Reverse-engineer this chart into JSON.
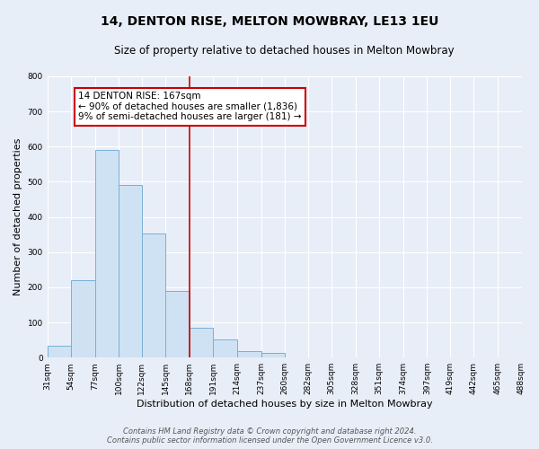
{
  "title": "14, DENTON RISE, MELTON MOWBRAY, LE13 1EU",
  "subtitle": "Size of property relative to detached houses in Melton Mowbray",
  "xlabel": "Distribution of detached houses by size in Melton Mowbray",
  "ylabel": "Number of detached properties",
  "bin_edges": [
    31,
    54,
    77,
    100,
    122,
    145,
    168,
    191,
    214,
    237,
    260,
    282,
    305,
    328,
    351,
    374,
    397,
    419,
    442,
    465,
    488
  ],
  "bin_labels": [
    "31sqm",
    "54sqm",
    "77sqm",
    "100sqm",
    "122sqm",
    "145sqm",
    "168sqm",
    "191sqm",
    "214sqm",
    "237sqm",
    "260sqm",
    "282sqm",
    "305sqm",
    "328sqm",
    "351sqm",
    "374sqm",
    "397sqm",
    "419sqm",
    "442sqm",
    "465sqm",
    "488sqm"
  ],
  "counts": [
    33,
    220,
    590,
    490,
    352,
    190,
    85,
    52,
    18,
    13,
    0,
    0,
    0,
    0,
    0,
    0,
    1,
    0,
    0,
    0
  ],
  "bar_color": "#cfe2f3",
  "bar_edge_color": "#7bafd4",
  "vline_x": 168,
  "vline_color": "#cc0000",
  "annotation_box_color": "#cc0000",
  "annotation_line1": "14 DENTON RISE: 167sqm",
  "annotation_line2": "← 90% of detached houses are smaller (1,836)",
  "annotation_line3": "9% of semi-detached houses are larger (181) →",
  "ylim": [
    0,
    800
  ],
  "yticks": [
    0,
    100,
    200,
    300,
    400,
    500,
    600,
    700,
    800
  ],
  "footer_line1": "Contains HM Land Registry data © Crown copyright and database right 2024.",
  "footer_line2": "Contains public sector information licensed under the Open Government Licence v3.0.",
  "bg_color": "#e8eef8",
  "plot_bg_color": "#e8eef8",
  "grid_color": "#ffffff",
  "title_fontsize": 10,
  "subtitle_fontsize": 8.5,
  "xlabel_fontsize": 8,
  "ylabel_fontsize": 8,
  "tick_fontsize": 6.5,
  "annotation_fontsize": 7.5,
  "footer_fontsize": 6
}
